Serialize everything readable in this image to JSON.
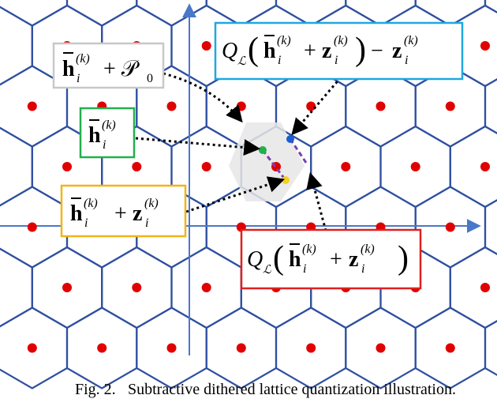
{
  "figure": {
    "caption_label": "Fig. 2.",
    "caption_text": "Subtractive dithered lattice quantization illustration."
  },
  "labels": {
    "h_plus_p0": {
      "bar_symbol": "h",
      "superscript": "(k)",
      "subscript": "i",
      "rest": "+ 𝒫",
      "rest_sub": "0",
      "border_color": "#c8c8c8"
    },
    "h_bar": {
      "bar_symbol": "h",
      "superscript": "(k)",
      "subscript": "i",
      "border_color": "#22b04b"
    },
    "h_plus_z": {
      "bar_symbol": "h",
      "superscript": "(k)",
      "subscript": "i",
      "z_symbol": "z",
      "z_superscript": "(k)",
      "z_subscript": "i",
      "plus": "+",
      "border_color": "#f2b418"
    },
    "q_minus_z": {
      "q_symbol": "Q",
      "q_sub": "ℒ",
      "bar_symbol": "h",
      "superscript": "(k)",
      "subscript": "i",
      "plus": "+",
      "z_symbol": "z",
      "z_superscript": "(k)",
      "z_subscript": "i",
      "minus": "−",
      "open_paren": "(",
      "close_paren": ")",
      "border_color": "#1ea8e0"
    },
    "q_of_h_plus_z": {
      "q_symbol": "Q",
      "q_sub": "ℒ",
      "bar_symbol": "h",
      "superscript": "(k)",
      "subscript": "i",
      "plus": "+",
      "z_symbol": "z",
      "z_superscript": "(k)",
      "z_subscript": "i",
      "open_paren": "(",
      "close_paren": ")",
      "border_color": "#e02020"
    }
  },
  "colors": {
    "hex_stroke": "#2f4fa0",
    "axis": "#4a78c8",
    "lattice_point": "#e00000",
    "highlight_cell": "#e6e6e6",
    "arrow": "#000000",
    "dashed_segment": "#7a3fb0",
    "green_point": "#22b04b",
    "blue_point": "#1a5fd0",
    "yellow_point": "#f4d020"
  }
}
